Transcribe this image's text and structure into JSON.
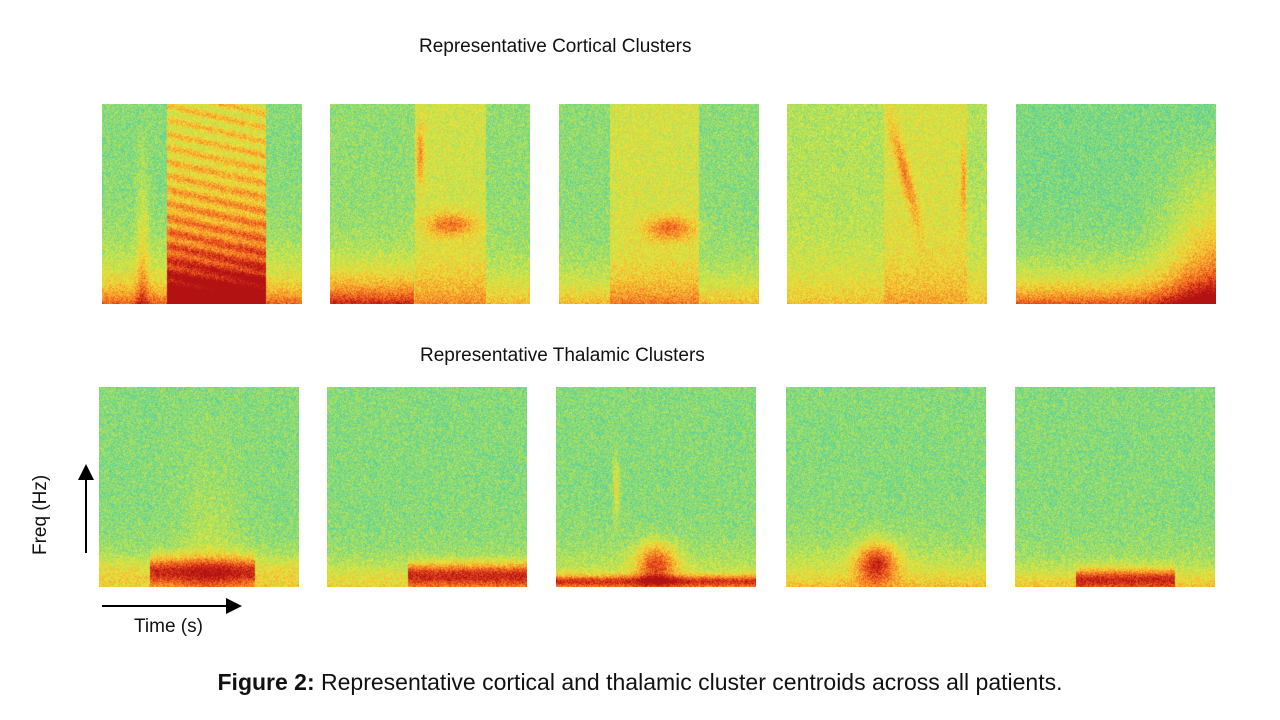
{
  "figure": {
    "row_titles": {
      "cortical": "Representative Cortical Clusters",
      "thalamic": "Representative Thalamic Clusters"
    },
    "axes": {
      "time_label": "Time (s)",
      "freq_label": "Freq (Hz)"
    },
    "caption": {
      "label": "Figure 2:",
      "text": " Representative cortical and thalamic cluster centroids across all patients."
    },
    "colormap": [
      "#1fa9d8",
      "#2ec4b6",
      "#5fd39a",
      "#a8e05f",
      "#e8e83a",
      "#f7b733",
      "#f57c23",
      "#e0401c",
      "#b31212"
    ],
    "panels": {
      "cortical": [
        "cortical-cluster-1",
        "cortical-cluster-2",
        "cortical-cluster-3",
        "cortical-cluster-4",
        "cortical-cluster-5"
      ],
      "thalamic": [
        "thalamic-cluster-1",
        "thalamic-cluster-2",
        "thalamic-cluster-3",
        "thalamic-cluster-4",
        "thalamic-cluster-5"
      ]
    }
  }
}
